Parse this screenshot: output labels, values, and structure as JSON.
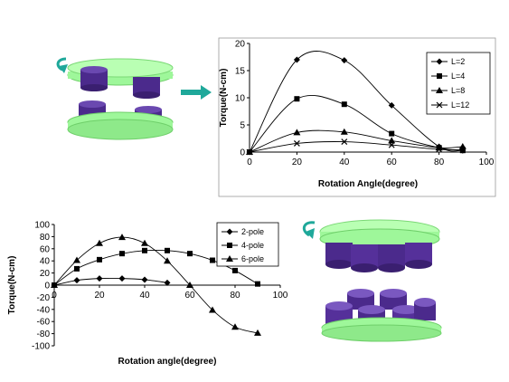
{
  "colors": {
    "disc_green": "#9ef79a",
    "magnet_purple": "#4b2a8c",
    "arrow_teal": "#1fa89a",
    "line": "#000000"
  },
  "chart_data": [
    {
      "type": "line",
      "title": "",
      "xlabel": "Rotation Angle(degree)",
      "ylabel": "Torque(N-cm)",
      "xlim": [
        0,
        100
      ],
      "ylim": [
        0,
        20
      ],
      "xticks": [
        0,
        20,
        40,
        60,
        80,
        100
      ],
      "yticks": [
        0,
        5,
        10,
        15,
        20
      ],
      "grid": false,
      "legend": "right",
      "series": [
        {
          "name": "L=2",
          "marker": "diamond",
          "x": [
            0,
            20,
            40,
            60,
            80,
            90
          ],
          "values": [
            0,
            17,
            16.9,
            8.6,
            1,
            0.3
          ]
        },
        {
          "name": "L=4",
          "marker": "square",
          "x": [
            0,
            20,
            40,
            60,
            80,
            90
          ],
          "values": [
            0,
            9.8,
            8.8,
            3.4,
            0.8,
            0.3
          ]
        },
        {
          "name": "L=8",
          "marker": "triangle",
          "x": [
            0,
            20,
            40,
            60,
            80,
            90
          ],
          "values": [
            0,
            3.6,
            3.7,
            2.1,
            0.8,
            1
          ]
        },
        {
          "name": "L=12",
          "marker": "x",
          "x": [
            0,
            20,
            40,
            60,
            80,
            90
          ],
          "values": [
            0,
            1.6,
            1.9,
            1.3,
            0.5,
            0.4
          ]
        }
      ]
    },
    {
      "type": "line",
      "title": "",
      "xlabel": "Rotation angle(degree)",
      "ylabel": "Torque(N-cm)",
      "xlim": [
        0,
        100
      ],
      "ylim": [
        -100,
        100
      ],
      "xticks": [
        0,
        20,
        40,
        60,
        80,
        100
      ],
      "yticks": [
        100,
        80,
        60,
        40,
        20,
        0,
        -20,
        -40,
        -60,
        -80,
        -100
      ],
      "grid": false,
      "legend": "right",
      "series": [
        {
          "name": "2-pole",
          "marker": "diamond",
          "x": [
            0,
            10,
            20,
            30,
            40,
            50
          ],
          "values": [
            0,
            8,
            11,
            11,
            9,
            4
          ]
        },
        {
          "name": "4-pole",
          "marker": "square",
          "x": [
            0,
            10,
            20,
            30,
            40,
            50,
            60,
            70,
            80,
            90
          ],
          "values": [
            0,
            27,
            42,
            52,
            57,
            57,
            52,
            41,
            24,
            2
          ]
        },
        {
          "name": "6-pole",
          "marker": "triangle",
          "x": [
            0,
            10,
            20,
            30,
            40,
            50,
            60,
            70,
            80,
            90
          ],
          "values": [
            0,
            41,
            69,
            79,
            69,
            40,
            0,
            -41,
            -69,
            -79
          ]
        }
      ]
    }
  ]
}
